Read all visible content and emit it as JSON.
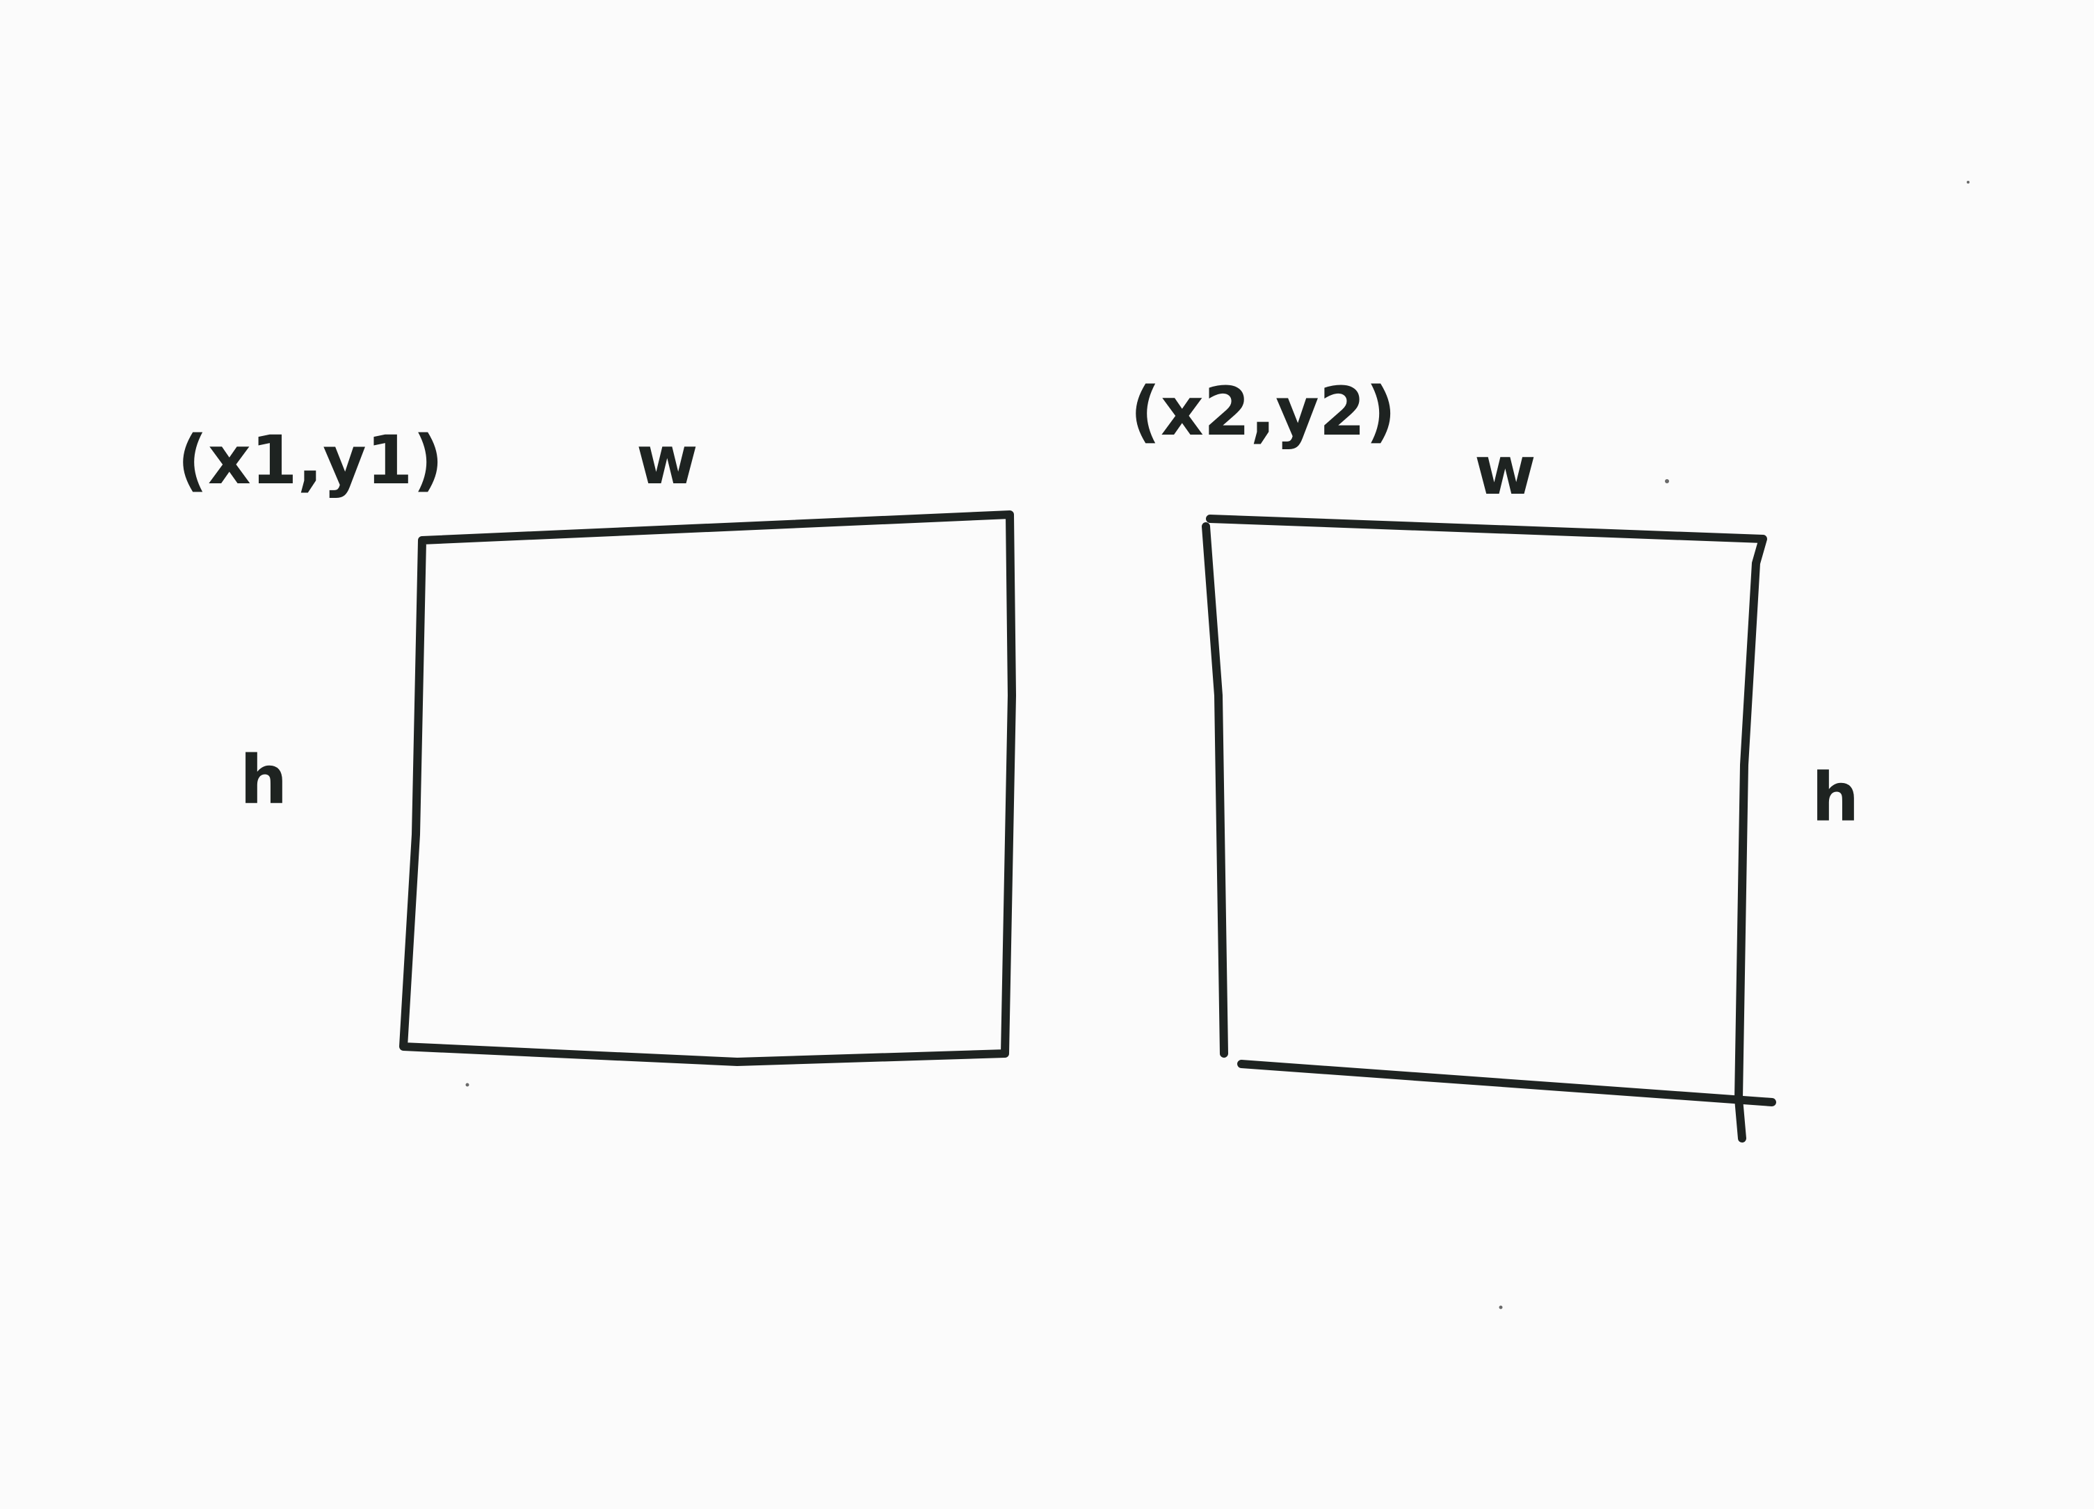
{
  "diagram": {
    "boxes": [
      {
        "corner_label": "(x1,y1)",
        "width_label": "w",
        "height_label": "h"
      },
      {
        "corner_label": "(x2,y2)",
        "width_label": "w",
        "height_label": "h"
      }
    ],
    "colors": {
      "ink": "#1e2321",
      "paper": "#fbfbfb"
    }
  }
}
